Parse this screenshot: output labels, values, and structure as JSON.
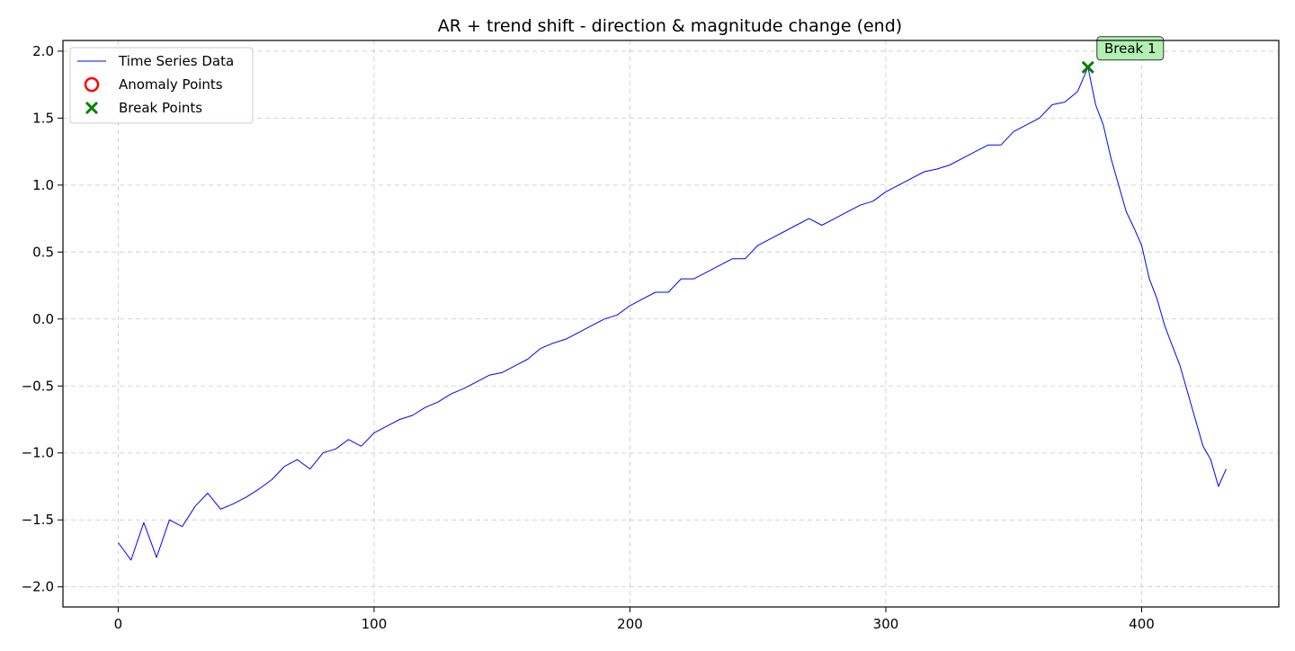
{
  "chart_data": {
    "type": "line",
    "title": "AR + trend shift - direction & magnitude change (end)",
    "xlabel": "",
    "ylabel": "",
    "xlim": [
      -21.6,
      453.6
    ],
    "ylim": [
      -2.15,
      2.08
    ],
    "xticks": [
      0,
      100,
      200,
      300,
      400
    ],
    "yticks": [
      -2.0,
      -1.5,
      -1.0,
      -0.5,
      0.0,
      0.5,
      1.0,
      1.5,
      2.0
    ],
    "ytick_labels": [
      "−2.0",
      "−1.5",
      "−1.0",
      "−0.5",
      "0.0",
      "0.5",
      "1.0",
      "1.5",
      "2.0"
    ],
    "grid": true,
    "legend_position": "upper-left",
    "legend": [
      {
        "label": "Time Series Data",
        "marker": "line",
        "color": "#0000ff"
      },
      {
        "label": "Anomaly Points",
        "marker": "circle",
        "color": "#ff0000"
      },
      {
        "label": "Break Points",
        "marker": "x",
        "color": "#008000"
      }
    ],
    "series": [
      {
        "name": "Time Series Data",
        "color": "#0000ff",
        "x": [
          0,
          5,
          10,
          15,
          20,
          25,
          30,
          35,
          40,
          45,
          50,
          55,
          60,
          65,
          70,
          75,
          80,
          85,
          90,
          95,
          100,
          105,
          110,
          115,
          120,
          125,
          130,
          135,
          140,
          145,
          150,
          155,
          160,
          165,
          170,
          175,
          180,
          185,
          190,
          195,
          200,
          205,
          210,
          215,
          220,
          225,
          230,
          235,
          240,
          245,
          250,
          255,
          260,
          265,
          270,
          275,
          280,
          285,
          290,
          295,
          300,
          305,
          310,
          315,
          320,
          325,
          330,
          335,
          340,
          345,
          350,
          355,
          360,
          365,
          370,
          375,
          379,
          382,
          385,
          388,
          391,
          394,
          397,
          400,
          403,
          406,
          409,
          412,
          415,
          418,
          421,
          424,
          427,
          430,
          433
        ],
        "y": [
          -1.67,
          -1.8,
          -1.52,
          -1.78,
          -1.5,
          -1.55,
          -1.4,
          -1.3,
          -1.42,
          -1.38,
          -1.33,
          -1.27,
          -1.2,
          -1.1,
          -1.05,
          -1.12,
          -1.0,
          -0.97,
          -0.9,
          -0.95,
          -0.85,
          -0.8,
          -0.75,
          -0.72,
          -0.66,
          -0.62,
          -0.56,
          -0.52,
          -0.47,
          -0.42,
          -0.4,
          -0.35,
          -0.3,
          -0.22,
          -0.18,
          -0.15,
          -0.1,
          -0.05,
          0.0,
          0.03,
          0.1,
          0.15,
          0.2,
          0.2,
          0.3,
          0.3,
          0.35,
          0.4,
          0.45,
          0.45,
          0.55,
          0.6,
          0.65,
          0.7,
          0.75,
          0.7,
          0.75,
          0.8,
          0.85,
          0.88,
          0.95,
          1.0,
          1.05,
          1.1,
          1.12,
          1.15,
          1.2,
          1.25,
          1.3,
          1.3,
          1.4,
          1.45,
          1.5,
          1.6,
          1.62,
          1.7,
          1.88,
          1.6,
          1.45,
          1.2,
          1.0,
          0.8,
          0.68,
          0.55,
          0.3,
          0.15,
          -0.05,
          -0.2,
          -0.35,
          -0.55,
          -0.75,
          -0.95,
          -1.05,
          -1.25,
          -1.12
        ]
      }
    ],
    "anomaly_points": [],
    "break_points": [
      {
        "x": 379,
        "y": 1.88,
        "label": "Break 1"
      }
    ]
  }
}
